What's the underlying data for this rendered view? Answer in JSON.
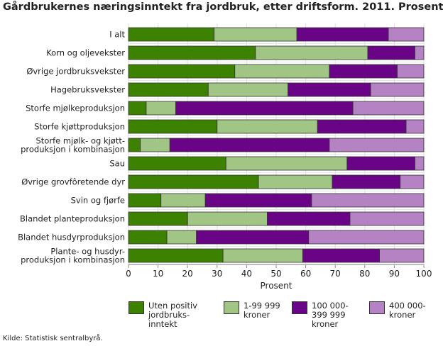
{
  "chart_data": {
    "type": "bar",
    "orientation": "horizontal",
    "stacked": true,
    "title": "Gårdbrukernes næringsinntekt fra jordbruk, etter driftsform. 2011. Prosent",
    "xlabel": "Prosent",
    "ylabel": "",
    "xlim": [
      0,
      100
    ],
    "xticks": [
      "0",
      "10",
      "20",
      "30",
      "40",
      "50",
      "60",
      "70",
      "80",
      "90",
      "100"
    ],
    "grid": true,
    "legend_position": "bottom",
    "categories": [
      "I alt",
      "Korn og oljevekster",
      "Øvrige jordbruksvekster",
      "Hagebruksvekster",
      "Storfe mjølkeproduksjon",
      "Storfe kjøttproduksjon",
      "Storfe mjølk- og kjøtt-\nproduksjon i kombinasjon",
      "Sau",
      "Øvrige grovfôretende dyr",
      "Svin og fjørfe",
      "Blandet planteproduksjon",
      "Blandet husdyrproduksjon",
      "Plante- og husdyr-\nproduksjon i kombinasjon"
    ],
    "series": [
      {
        "name": "Uten positiv jordbruks-inntekt",
        "color": "#3d8100",
        "values": [
          29,
          43,
          36,
          27,
          6,
          30,
          4,
          33,
          44,
          11,
          20,
          13,
          32
        ]
      },
      {
        "name": "1-99 999 kroner",
        "color": "#a0c585",
        "values": [
          28,
          38,
          32,
          27,
          10,
          34,
          10,
          41,
          25,
          15,
          27,
          10,
          27
        ]
      },
      {
        "name": "100 000-399 999 kroner",
        "color": "#690487",
        "values": [
          31,
          16,
          23,
          28,
          60,
          30,
          54,
          23,
          23,
          36,
          28,
          38,
          26
        ]
      },
      {
        "name": "400 000- kroner",
        "color": "#b583c3",
        "values": [
          12,
          3,
          9,
          18,
          24,
          6,
          32,
          3,
          8,
          38,
          25,
          39,
          15
        ]
      }
    ],
    "legend_labels": [
      [
        "Uten positiv",
        "jordbruks-",
        "inntekt"
      ],
      [
        "1-99 999",
        "kroner"
      ],
      [
        "100 000-",
        "399 999",
        "kroner"
      ],
      [
        "400 000-",
        "kroner"
      ]
    ]
  },
  "source": "Kilde: Statistisk sentralbyrå."
}
